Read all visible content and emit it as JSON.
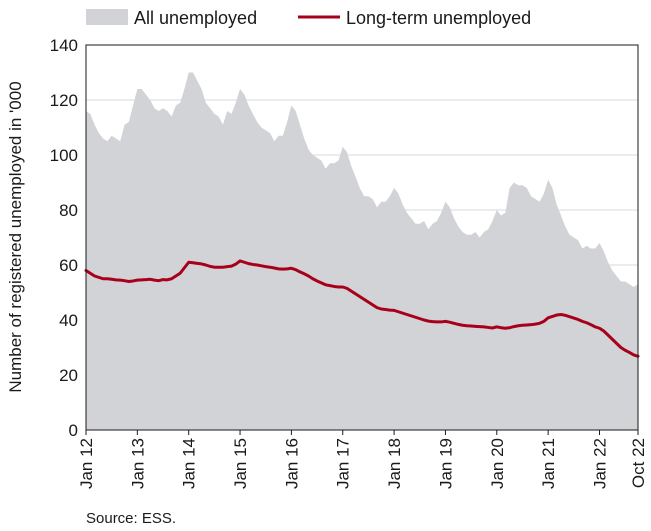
{
  "chart_data": {
    "type": "area",
    "title": "",
    "xlabel": "",
    "ylabel": "Number of registered unemployed in '000",
    "ylim": [
      0,
      140
    ],
    "yticks": [
      0,
      20,
      40,
      60,
      80,
      100,
      120,
      140
    ],
    "x_tick_labels": [
      "Jan 12",
      "Jan 13",
      "Jan 14",
      "Jan 15",
      "Jan 16",
      "Jan 17",
      "Jan 18",
      "Jan 19",
      "Jan 20",
      "Jan 21",
      "Jan 22",
      "Oct 22"
    ],
    "x_range": [
      "2012-01",
      "2022-10"
    ],
    "grid": "horizontal",
    "legend_position": "top",
    "source": "Source: ESS.",
    "colors": {
      "area": "#d1d3d6",
      "line": "#a8001a",
      "grid": "#d9d9d9"
    },
    "series": [
      {
        "name": "All unemployed",
        "kind": "area",
        "points": [
          [
            "2012-01",
            116
          ],
          [
            "2012-02",
            115
          ],
          [
            "2012-03",
            111
          ],
          [
            "2012-04",
            108
          ],
          [
            "2012-05",
            106
          ],
          [
            "2012-06",
            105
          ],
          [
            "2012-07",
            107
          ],
          [
            "2012-08",
            106
          ],
          [
            "2012-09",
            105
          ],
          [
            "2012-10",
            111
          ],
          [
            "2012-11",
            112
          ],
          [
            "2012-12",
            118
          ],
          [
            "2013-01",
            124
          ],
          [
            "2013-02",
            124
          ],
          [
            "2013-03",
            122
          ],
          [
            "2013-04",
            120
          ],
          [
            "2013-05",
            117
          ],
          [
            "2013-06",
            116
          ],
          [
            "2013-07",
            117
          ],
          [
            "2013-08",
            116
          ],
          [
            "2013-09",
            114
          ],
          [
            "2013-10",
            118
          ],
          [
            "2013-11",
            119
          ],
          [
            "2013-12",
            124
          ],
          [
            "2014-01",
            130
          ],
          [
            "2014-02",
            130
          ],
          [
            "2014-03",
            127
          ],
          [
            "2014-04",
            124
          ],
          [
            "2014-05",
            119
          ],
          [
            "2014-06",
            117
          ],
          [
            "2014-07",
            115
          ],
          [
            "2014-08",
            114
          ],
          [
            "2014-09",
            111
          ],
          [
            "2014-10",
            116
          ],
          [
            "2014-11",
            115
          ],
          [
            "2014-12",
            119
          ],
          [
            "2015-01",
            124
          ],
          [
            "2015-02",
            122
          ],
          [
            "2015-03",
            118
          ],
          [
            "2015-04",
            115
          ],
          [
            "2015-05",
            112
          ],
          [
            "2015-06",
            110
          ],
          [
            "2015-07",
            109
          ],
          [
            "2015-08",
            108
          ],
          [
            "2015-09",
            105
          ],
          [
            "2015-10",
            107
          ],
          [
            "2015-11",
            107
          ],
          [
            "2015-12",
            112
          ],
          [
            "2016-01",
            118
          ],
          [
            "2016-02",
            116
          ],
          [
            "2016-03",
            111
          ],
          [
            "2016-04",
            106
          ],
          [
            "2016-05",
            102
          ],
          [
            "2016-06",
            100
          ],
          [
            "2016-07",
            99
          ],
          [
            "2016-08",
            98
          ],
          [
            "2016-09",
            95
          ],
          [
            "2016-10",
            97
          ],
          [
            "2016-11",
            97
          ],
          [
            "2016-12",
            98
          ],
          [
            "2017-01",
            103
          ],
          [
            "2017-02",
            101
          ],
          [
            "2017-03",
            96
          ],
          [
            "2017-04",
            92
          ],
          [
            "2017-05",
            88
          ],
          [
            "2017-06",
            85
          ],
          [
            "2017-07",
            85
          ],
          [
            "2017-08",
            84
          ],
          [
            "2017-09",
            81
          ],
          [
            "2017-10",
            83
          ],
          [
            "2017-11",
            83
          ],
          [
            "2017-12",
            85
          ],
          [
            "2018-01",
            88
          ],
          [
            "2018-02",
            86
          ],
          [
            "2018-03",
            82
          ],
          [
            "2018-04",
            79
          ],
          [
            "2018-05",
            77
          ],
          [
            "2018-06",
            75
          ],
          [
            "2018-07",
            75
          ],
          [
            "2018-08",
            76
          ],
          [
            "2018-09",
            73
          ],
          [
            "2018-10",
            75
          ],
          [
            "2018-11",
            76
          ],
          [
            "2018-12",
            79
          ],
          [
            "2019-01",
            83
          ],
          [
            "2019-02",
            81
          ],
          [
            "2019-03",
            77
          ],
          [
            "2019-04",
            74
          ],
          [
            "2019-05",
            72
          ],
          [
            "2019-06",
            71
          ],
          [
            "2019-07",
            71
          ],
          [
            "2019-08",
            72
          ],
          [
            "2019-09",
            70
          ],
          [
            "2019-10",
            72
          ],
          [
            "2019-11",
            73
          ],
          [
            "2019-12",
            76
          ],
          [
            "2020-01",
            80
          ],
          [
            "2020-02",
            78
          ],
          [
            "2020-03",
            79
          ],
          [
            "2020-04",
            88
          ],
          [
            "2020-05",
            90
          ],
          [
            "2020-06",
            89
          ],
          [
            "2020-07",
            89
          ],
          [
            "2020-08",
            88
          ],
          [
            "2020-09",
            85
          ],
          [
            "2020-10",
            84
          ],
          [
            "2020-11",
            83
          ],
          [
            "2020-12",
            86
          ],
          [
            "2021-01",
            91
          ],
          [
            "2021-02",
            88
          ],
          [
            "2021-03",
            82
          ],
          [
            "2021-04",
            78
          ],
          [
            "2021-05",
            74
          ],
          [
            "2021-06",
            71
          ],
          [
            "2021-07",
            70
          ],
          [
            "2021-08",
            69
          ],
          [
            "2021-09",
            66
          ],
          [
            "2021-10",
            67
          ],
          [
            "2021-11",
            66
          ],
          [
            "2021-12",
            66
          ],
          [
            "2022-01",
            68
          ],
          [
            "2022-02",
            65
          ],
          [
            "2022-03",
            61
          ],
          [
            "2022-04",
            58
          ],
          [
            "2022-05",
            56
          ],
          [
            "2022-06",
            54
          ],
          [
            "2022-07",
            54
          ],
          [
            "2022-08",
            53
          ],
          [
            "2022-09",
            52
          ],
          [
            "2022-10",
            53
          ]
        ]
      },
      {
        "name": "Long-term unemployed",
        "kind": "line",
        "points": [
          [
            "2012-01",
            58
          ],
          [
            "2012-02",
            57
          ],
          [
            "2012-03",
            56
          ],
          [
            "2012-04",
            55.5
          ],
          [
            "2012-05",
            55
          ],
          [
            "2012-06",
            55
          ],
          [
            "2012-07",
            54.8
          ],
          [
            "2012-08",
            54.6
          ],
          [
            "2012-09",
            54.5
          ],
          [
            "2012-10",
            54.3
          ],
          [
            "2012-11",
            54
          ],
          [
            "2012-12",
            54.2
          ],
          [
            "2013-01",
            54.5
          ],
          [
            "2013-02",
            54.6
          ],
          [
            "2013-03",
            54.7
          ],
          [
            "2013-04",
            54.8
          ],
          [
            "2013-05",
            54.5
          ],
          [
            "2013-06",
            54.3
          ],
          [
            "2013-07",
            54.7
          ],
          [
            "2013-08",
            54.6
          ],
          [
            "2013-09",
            55
          ],
          [
            "2013-10",
            56
          ],
          [
            "2013-11",
            57
          ],
          [
            "2013-12",
            59
          ],
          [
            "2014-01",
            61
          ],
          [
            "2014-02",
            60.8
          ],
          [
            "2014-03",
            60.6
          ],
          [
            "2014-04",
            60.4
          ],
          [
            "2014-05",
            60
          ],
          [
            "2014-06",
            59.5
          ],
          [
            "2014-07",
            59.2
          ],
          [
            "2014-08",
            59.2
          ],
          [
            "2014-09",
            59.2
          ],
          [
            "2014-10",
            59.4
          ],
          [
            "2014-11",
            59.6
          ],
          [
            "2014-12",
            60.3
          ],
          [
            "2015-01",
            61.5
          ],
          [
            "2015-02",
            61
          ],
          [
            "2015-03",
            60.5
          ],
          [
            "2015-04",
            60.2
          ],
          [
            "2015-05",
            60
          ],
          [
            "2015-06",
            59.7
          ],
          [
            "2015-07",
            59.4
          ],
          [
            "2015-08",
            59.2
          ],
          [
            "2015-09",
            58.9
          ],
          [
            "2015-10",
            58.6
          ],
          [
            "2015-11",
            58.5
          ],
          [
            "2015-12",
            58.6
          ],
          [
            "2016-01",
            58.8
          ],
          [
            "2016-02",
            58.3
          ],
          [
            "2016-03",
            57.5
          ],
          [
            "2016-04",
            56.8
          ],
          [
            "2016-05",
            56
          ],
          [
            "2016-06",
            55
          ],
          [
            "2016-07",
            54.2
          ],
          [
            "2016-08",
            53.5
          ],
          [
            "2016-09",
            52.8
          ],
          [
            "2016-10",
            52.5
          ],
          [
            "2016-11",
            52.2
          ],
          [
            "2016-12",
            52
          ],
          [
            "2017-01",
            52
          ],
          [
            "2017-02",
            51.5
          ],
          [
            "2017-03",
            50.5
          ],
          [
            "2017-04",
            49.5
          ],
          [
            "2017-05",
            48.5
          ],
          [
            "2017-06",
            47.5
          ],
          [
            "2017-07",
            46.5
          ],
          [
            "2017-08",
            45.5
          ],
          [
            "2017-09",
            44.5
          ],
          [
            "2017-10",
            44
          ],
          [
            "2017-11",
            43.8
          ],
          [
            "2017-12",
            43.6
          ],
          [
            "2018-01",
            43.5
          ],
          [
            "2018-02",
            43
          ],
          [
            "2018-03",
            42.5
          ],
          [
            "2018-04",
            42
          ],
          [
            "2018-05",
            41.5
          ],
          [
            "2018-06",
            41
          ],
          [
            "2018-07",
            40.5
          ],
          [
            "2018-08",
            40
          ],
          [
            "2018-09",
            39.6
          ],
          [
            "2018-10",
            39.4
          ],
          [
            "2018-11",
            39.3
          ],
          [
            "2018-12",
            39.3
          ],
          [
            "2019-01",
            39.5
          ],
          [
            "2019-02",
            39.2
          ],
          [
            "2019-03",
            38.8
          ],
          [
            "2019-04",
            38.4
          ],
          [
            "2019-05",
            38.1
          ],
          [
            "2019-06",
            37.9
          ],
          [
            "2019-07",
            37.8
          ],
          [
            "2019-08",
            37.7
          ],
          [
            "2019-09",
            37.6
          ],
          [
            "2019-10",
            37.5
          ],
          [
            "2019-11",
            37.3
          ],
          [
            "2019-12",
            37.1
          ],
          [
            "2020-01",
            37.5
          ],
          [
            "2020-02",
            37.2
          ],
          [
            "2020-03",
            37
          ],
          [
            "2020-04",
            37.2
          ],
          [
            "2020-05",
            37.6
          ],
          [
            "2020-06",
            37.9
          ],
          [
            "2020-07",
            38.1
          ],
          [
            "2020-08",
            38.2
          ],
          [
            "2020-09",
            38.3
          ],
          [
            "2020-10",
            38.5
          ],
          [
            "2020-11",
            38.8
          ],
          [
            "2020-12",
            39.5
          ],
          [
            "2021-01",
            40.8
          ],
          [
            "2021-02",
            41.3
          ],
          [
            "2021-03",
            41.8
          ],
          [
            "2021-04",
            42
          ],
          [
            "2021-05",
            41.7
          ],
          [
            "2021-06",
            41.2
          ],
          [
            "2021-07",
            40.7
          ],
          [
            "2021-08",
            40.2
          ],
          [
            "2021-09",
            39.5
          ],
          [
            "2021-10",
            39
          ],
          [
            "2021-11",
            38.3
          ],
          [
            "2021-12",
            37.5
          ],
          [
            "2022-01",
            37
          ],
          [
            "2022-02",
            36
          ],
          [
            "2022-03",
            34.5
          ],
          [
            "2022-04",
            33
          ],
          [
            "2022-05",
            31.5
          ],
          [
            "2022-06",
            30
          ],
          [
            "2022-07",
            29
          ],
          [
            "2022-08",
            28.2
          ],
          [
            "2022-09",
            27.3
          ],
          [
            "2022-10",
            26.8
          ]
        ]
      }
    ]
  }
}
